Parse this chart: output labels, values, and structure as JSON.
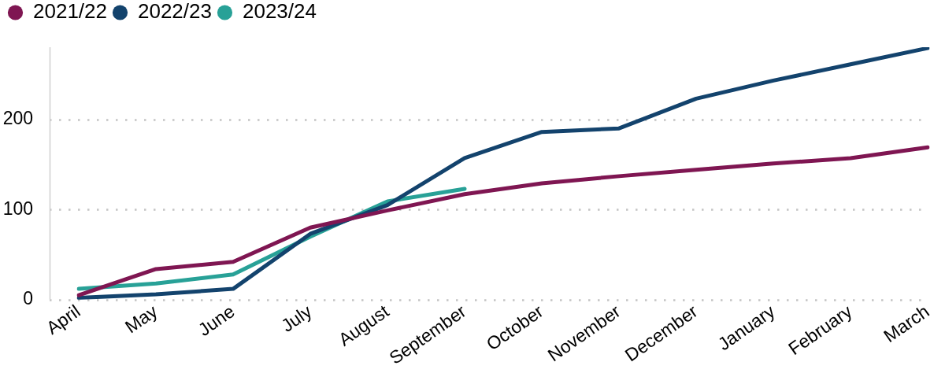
{
  "chart_data": {
    "type": "line",
    "categories": [
      "April",
      "May",
      "June",
      "July",
      "August",
      "September",
      "October",
      "November",
      "December",
      "January",
      "February",
      "March"
    ],
    "series": [
      {
        "name": "2021/22",
        "color": "#7f1652",
        "values": [
          5,
          34,
          42,
          80,
          99,
          117,
          129,
          137,
          144,
          151,
          157,
          169
        ]
      },
      {
        "name": "2022/23",
        "color": "#13436d",
        "values": [
          2,
          6,
          12,
          73,
          105,
          157,
          186,
          190,
          223,
          243,
          261,
          279
        ]
      },
      {
        "name": "2023/24",
        "color": "#28a197",
        "values": [
          12,
          18,
          28,
          70,
          109,
          123,
          null,
          null,
          null,
          null,
          null,
          null
        ]
      }
    ],
    "ylim": [
      0,
      280
    ],
    "yticks": [
      0,
      100,
      200
    ],
    "grid": "y",
    "legend": "top left",
    "marker": "none",
    "line_style": "solid"
  }
}
